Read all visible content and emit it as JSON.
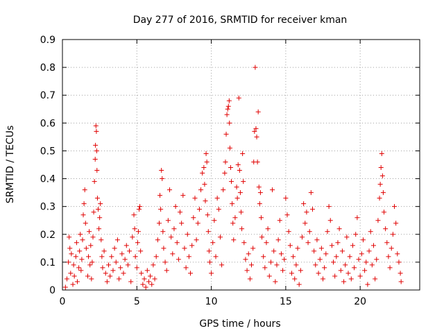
{
  "chart_data": {
    "type": "scatter",
    "title": "Day 277 of 2016, SRMTID for receiver kman",
    "xlabel": "GPS time / hours",
    "ylabel": "SRMTID / TECUs",
    "xlim": [
      0,
      24
    ],
    "ylim": [
      0,
      0.9
    ],
    "xticks": [
      0,
      5,
      10,
      15,
      20
    ],
    "yticks": [
      0,
      0.1,
      0.2,
      0.3,
      0.4,
      0.5,
      0.6,
      0.7,
      0.8,
      0.9
    ],
    "xtick_labels": [
      "0",
      "5",
      "10",
      "15",
      "20"
    ],
    "ytick_labels": [
      "0",
      "0.1",
      "0.2",
      "0.3",
      "0.4",
      "0.5",
      "0.6",
      "0.7",
      "0.8",
      "0.9"
    ],
    "grid": true,
    "marker": "+",
    "color": "#e00000",
    "series": [
      {
        "name": "SRMTID",
        "points": [
          [
            0.2,
            0.01
          ],
          [
            0.3,
            0.04
          ],
          [
            0.4,
            0.1
          ],
          [
            0.45,
            0.19
          ],
          [
            0.5,
            0.15
          ],
          [
            0.55,
            0.06
          ],
          [
            0.6,
            0.13
          ],
          [
            0.7,
            0.02
          ],
          [
            0.75,
            0.09
          ],
          [
            0.8,
            0.05
          ],
          [
            0.9,
            0.12
          ],
          [
            0.95,
            0.17
          ],
          [
            1.0,
            0.03
          ],
          [
            1.1,
            0.08
          ],
          [
            1.15,
            0.14
          ],
          [
            1.2,
            0.2
          ],
          [
            1.25,
            0.07
          ],
          [
            1.3,
            0.11
          ],
          [
            1.35,
            0.18
          ],
          [
            1.4,
            0.27
          ],
          [
            1.45,
            0.31
          ],
          [
            1.5,
            0.36
          ],
          [
            1.55,
            0.24
          ],
          [
            1.6,
            0.15
          ],
          [
            1.7,
            0.05
          ],
          [
            1.75,
            0.12
          ],
          [
            1.8,
            0.21
          ],
          [
            1.85,
            0.09
          ],
          [
            1.9,
            0.16
          ],
          [
            1.95,
            0.04
          ],
          [
            2.0,
            0.1
          ],
          [
            2.05,
            0.19
          ],
          [
            2.1,
            0.28
          ],
          [
            2.15,
            0.39
          ],
          [
            2.2,
            0.47
          ],
          [
            2.22,
            0.52
          ],
          [
            2.25,
            0.59
          ],
          [
            2.28,
            0.57
          ],
          [
            2.3,
            0.5
          ],
          [
            2.32,
            0.43
          ],
          [
            2.35,
            0.33
          ],
          [
            2.4,
            0.29
          ],
          [
            2.45,
            0.22
          ],
          [
            2.5,
            0.26
          ],
          [
            2.55,
            0.31
          ],
          [
            2.6,
            0.18
          ],
          [
            2.65,
            0.12
          ],
          [
            2.7,
            0.08
          ],
          [
            2.8,
            0.14
          ],
          [
            2.9,
            0.06
          ],
          [
            3.0,
            0.03
          ],
          [
            3.1,
            0.09
          ],
          [
            3.2,
            0.05
          ],
          [
            3.3,
            0.12
          ],
          [
            3.4,
            0.07
          ],
          [
            3.5,
            0.15
          ],
          [
            3.6,
            0.1
          ],
          [
            3.7,
            0.18
          ],
          [
            3.8,
            0.04
          ],
          [
            3.9,
            0.08
          ],
          [
            4.0,
            0.13
          ],
          [
            4.1,
            0.06
          ],
          [
            4.2,
            0.11
          ],
          [
            4.3,
            0.16
          ],
          [
            4.4,
            0.09
          ],
          [
            4.5,
            0.14
          ],
          [
            4.6,
            0.03
          ],
          [
            4.7,
            0.19
          ],
          [
            4.8,
            0.27
          ],
          [
            4.85,
            0.22
          ],
          [
            4.9,
            0.12
          ],
          [
            5.0,
            0.08
          ],
          [
            5.05,
            0.17
          ],
          [
            5.1,
            0.21
          ],
          [
            5.15,
            0.29
          ],
          [
            5.2,
            0.3
          ],
          [
            5.25,
            0.14
          ],
          [
            5.3,
            0.06
          ],
          [
            5.4,
            0.02
          ],
          [
            5.5,
            0.04
          ],
          [
            5.6,
            0.01
          ],
          [
            5.7,
            0.07
          ],
          [
            5.8,
            0.03
          ],
          [
            5.9,
            0.05
          ],
          [
            6.0,
            0.02
          ],
          [
            6.1,
            0.09
          ],
          [
            6.2,
            0.04
          ],
          [
            6.3,
            0.12
          ],
          [
            6.4,
            0.18
          ],
          [
            6.5,
            0.24
          ],
          [
            6.55,
            0.34
          ],
          [
            6.6,
            0.29
          ],
          [
            6.65,
            0.43
          ],
          [
            6.7,
            0.4
          ],
          [
            6.75,
            0.21
          ],
          [
            6.8,
            0.15
          ],
          [
            6.9,
            0.1
          ],
          [
            7.0,
            0.07
          ],
          [
            7.1,
            0.25
          ],
          [
            7.2,
            0.36
          ],
          [
            7.3,
            0.19
          ],
          [
            7.4,
            0.13
          ],
          [
            7.5,
            0.22
          ],
          [
            7.6,
            0.3
          ],
          [
            7.7,
            0.17
          ],
          [
            7.8,
            0.11
          ],
          [
            7.9,
            0.28
          ],
          [
            8.0,
            0.24
          ],
          [
            8.1,
            0.34
          ],
          [
            8.2,
            0.15
          ],
          [
            8.3,
            0.08
          ],
          [
            8.4,
            0.2
          ],
          [
            8.5,
            0.12
          ],
          [
            8.6,
            0.06
          ],
          [
            8.7,
            0.16
          ],
          [
            8.8,
            0.26
          ],
          [
            8.9,
            0.33
          ],
          [
            9.0,
            0.18
          ],
          [
            9.1,
            0.24
          ],
          [
            9.2,
            0.29
          ],
          [
            9.3,
            0.36
          ],
          [
            9.4,
            0.42
          ],
          [
            9.5,
            0.44
          ],
          [
            9.55,
            0.38
          ],
          [
            9.6,
            0.32
          ],
          [
            9.65,
            0.49
          ],
          [
            9.7,
            0.46
          ],
          [
            9.75,
            0.27
          ],
          [
            9.8,
            0.21
          ],
          [
            9.85,
            0.14
          ],
          [
            9.9,
            0.1
          ],
          [
            10.0,
            0.06
          ],
          [
            10.1,
            0.17
          ],
          [
            10.2,
            0.25
          ],
          [
            10.3,
            0.12
          ],
          [
            10.4,
            0.33
          ],
          [
            10.5,
            0.29
          ],
          [
            10.6,
            0.19
          ],
          [
            10.7,
            0.09
          ],
          [
            10.8,
            0.36
          ],
          [
            10.9,
            0.42
          ],
          [
            10.95,
            0.46
          ],
          [
            11.0,
            0.56
          ],
          [
            11.05,
            0.63
          ],
          [
            11.1,
            0.65
          ],
          [
            11.15,
            0.66
          ],
          [
            11.2,
            0.68
          ],
          [
            11.22,
            0.6
          ],
          [
            11.25,
            0.51
          ],
          [
            11.3,
            0.44
          ],
          [
            11.35,
            0.39
          ],
          [
            11.4,
            0.31
          ],
          [
            11.45,
            0.24
          ],
          [
            11.5,
            0.18
          ],
          [
            11.6,
            0.26
          ],
          [
            11.7,
            0.37
          ],
          [
            11.75,
            0.33
          ],
          [
            11.8,
            0.45
          ],
          [
            11.85,
            0.69
          ],
          [
            11.9,
            0.43
          ],
          [
            11.95,
            0.35
          ],
          [
            12.0,
            0.28
          ],
          [
            12.05,
            0.22
          ],
          [
            12.1,
            0.49
          ],
          [
            12.15,
            0.39
          ],
          [
            12.2,
            0.17
          ],
          [
            12.3,
            0.11
          ],
          [
            12.4,
            0.07
          ],
          [
            12.5,
            0.13
          ],
          [
            12.6,
            0.04
          ],
          [
            12.7,
            0.09
          ],
          [
            12.8,
            0.15
          ],
          [
            12.85,
            0.46
          ],
          [
            12.9,
            0.57
          ],
          [
            12.95,
            0.8
          ],
          [
            13.0,
            0.58
          ],
          [
            13.05,
            0.55
          ],
          [
            13.1,
            0.46
          ],
          [
            13.15,
            0.64
          ],
          [
            13.2,
            0.37
          ],
          [
            13.25,
            0.31
          ],
          [
            13.3,
            0.35
          ],
          [
            13.35,
            0.26
          ],
          [
            13.4,
            0.19
          ],
          [
            13.5,
            0.12
          ],
          [
            13.6,
            0.08
          ],
          [
            13.7,
            0.17
          ],
          [
            13.8,
            0.22
          ],
          [
            13.9,
            0.05
          ],
          [
            14.0,
            0.1
          ],
          [
            14.1,
            0.36
          ],
          [
            14.2,
            0.14
          ],
          [
            14.3,
            0.03
          ],
          [
            14.4,
            0.09
          ],
          [
            14.5,
            0.18
          ],
          [
            14.6,
            0.25
          ],
          [
            14.7,
            0.13
          ],
          [
            14.8,
            0.07
          ],
          [
            14.9,
            0.11
          ],
          [
            15.0,
            0.33
          ],
          [
            15.1,
            0.27
          ],
          [
            15.2,
            0.21
          ],
          [
            15.3,
            0.16
          ],
          [
            15.4,
            0.06
          ],
          [
            15.5,
            0.12
          ],
          [
            15.6,
            0.04
          ],
          [
            15.7,
            0.09
          ],
          [
            15.8,
            0.15
          ],
          [
            15.9,
            0.02
          ],
          [
            16.0,
            0.07
          ],
          [
            16.1,
            0.19
          ],
          [
            16.2,
            0.31
          ],
          [
            16.3,
            0.24
          ],
          [
            16.4,
            0.28
          ],
          [
            16.5,
            0.17
          ],
          [
            16.6,
            0.21
          ],
          [
            16.7,
            0.35
          ],
          [
            16.8,
            0.29
          ],
          [
            16.9,
            0.14
          ],
          [
            17.0,
            0.09
          ],
          [
            17.1,
            0.18
          ],
          [
            17.2,
            0.06
          ],
          [
            17.3,
            0.11
          ],
          [
            17.4,
            0.15
          ],
          [
            17.5,
            0.04
          ],
          [
            17.6,
            0.08
          ],
          [
            17.7,
            0.13
          ],
          [
            17.8,
            0.21
          ],
          [
            17.9,
            0.3
          ],
          [
            18.0,
            0.25
          ],
          [
            18.1,
            0.16
          ],
          [
            18.2,
            0.1
          ],
          [
            18.3,
            0.05
          ],
          [
            18.4,
            0.12
          ],
          [
            18.5,
            0.17
          ],
          [
            18.6,
            0.22
          ],
          [
            18.7,
            0.07
          ],
          [
            18.8,
            0.14
          ],
          [
            18.9,
            0.03
          ],
          [
            19.0,
            0.09
          ],
          [
            19.1,
            0.19
          ],
          [
            19.2,
            0.06
          ],
          [
            19.3,
            0.12
          ],
          [
            19.4,
            0.04
          ],
          [
            19.5,
            0.16
          ],
          [
            19.6,
            0.08
          ],
          [
            19.7,
            0.2
          ],
          [
            19.8,
            0.26
          ],
          [
            19.9,
            0.11
          ],
          [
            20.0,
            0.05
          ],
          [
            20.1,
            0.13
          ],
          [
            20.2,
            0.18
          ],
          [
            20.3,
            0.07
          ],
          [
            20.4,
            0.1
          ],
          [
            20.5,
            0.02
          ],
          [
            20.6,
            0.14
          ],
          [
            20.7,
            0.21
          ],
          [
            20.8,
            0.09
          ],
          [
            20.9,
            0.16
          ],
          [
            21.0,
            0.04
          ],
          [
            21.1,
            0.11
          ],
          [
            21.2,
            0.25
          ],
          [
            21.3,
            0.33
          ],
          [
            21.35,
            0.38
          ],
          [
            21.4,
            0.44
          ],
          [
            21.45,
            0.49
          ],
          [
            21.5,
            0.41
          ],
          [
            21.55,
            0.35
          ],
          [
            21.6,
            0.28
          ],
          [
            21.7,
            0.22
          ],
          [
            21.8,
            0.17
          ],
          [
            21.9,
            0.12
          ],
          [
            22.0,
            0.08
          ],
          [
            22.1,
            0.15
          ],
          [
            22.2,
            0.2
          ],
          [
            22.3,
            0.3
          ],
          [
            22.4,
            0.24
          ],
          [
            22.5,
            0.13
          ],
          [
            22.6,
            0.1
          ],
          [
            22.7,
            0.06
          ],
          [
            22.75,
            0.03
          ]
        ]
      }
    ]
  }
}
